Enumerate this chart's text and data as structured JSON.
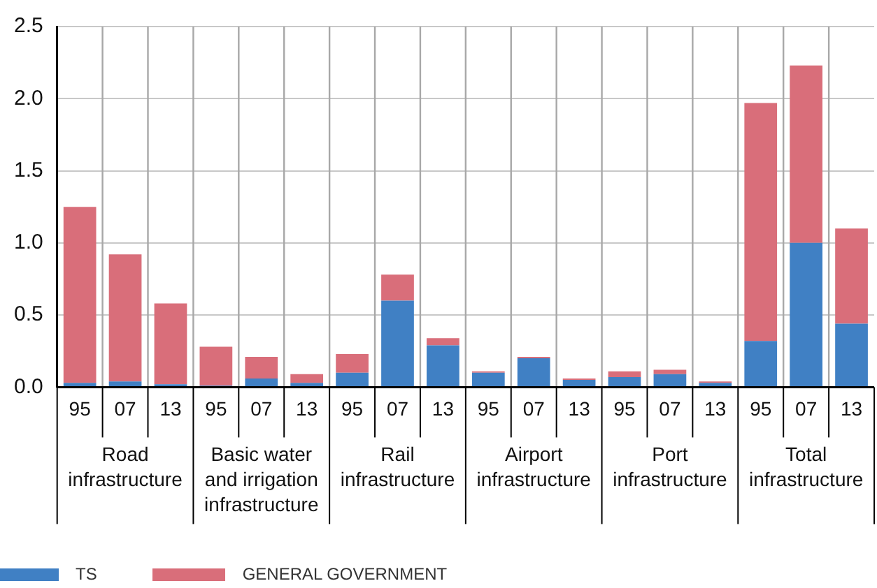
{
  "chart_data": {
    "type": "bar",
    "stacked": true,
    "categories": [
      "95",
      "07",
      "13",
      "95",
      "07",
      "13",
      "95",
      "07",
      "13",
      "95",
      "07",
      "13",
      "95",
      "07",
      "13",
      "95",
      "07",
      "13"
    ],
    "series": [
      {
        "name": "TS",
        "color": "#4080c4",
        "values": [
          0.03,
          0.04,
          0.02,
          0.01,
          0.06,
          0.03,
          0.1,
          0.6,
          0.29,
          0.1,
          0.2,
          0.05,
          0.07,
          0.09,
          0.03,
          0.32,
          1.0,
          0.44
        ]
      },
      {
        "name": "GENERAL GOVERNMENT",
        "color": "#d96e7a",
        "values": [
          1.22,
          0.88,
          0.56,
          0.27,
          0.15,
          0.06,
          0.13,
          0.18,
          0.05,
          0.01,
          0.01,
          0.01,
          0.04,
          0.03,
          0.01,
          1.65,
          1.23,
          0.66
        ]
      }
    ],
    "annotations": [
      "Road\ninfrastructure",
      "Basic water\nand irrigation\ninfrastructure",
      "Rail\ninfrastructure",
      "Airport\ninfrastructure",
      "Port\ninfrastructure",
      "Total\ninfrastructure"
    ],
    "ylim": [
      0,
      2.5
    ],
    "yticks": [
      {
        "value": 0,
        "label": "0.0"
      },
      {
        "value": 0.5,
        "label": "0.5"
      },
      {
        "value": 1,
        "label": "1.0"
      },
      {
        "value": 1.5,
        "label": "1.5"
      },
      {
        "value": 2,
        "label": "2.0"
      },
      {
        "value": 2.5,
        "label": "2.5"
      }
    ],
    "grid": "y",
    "legend": "bottom left"
  }
}
